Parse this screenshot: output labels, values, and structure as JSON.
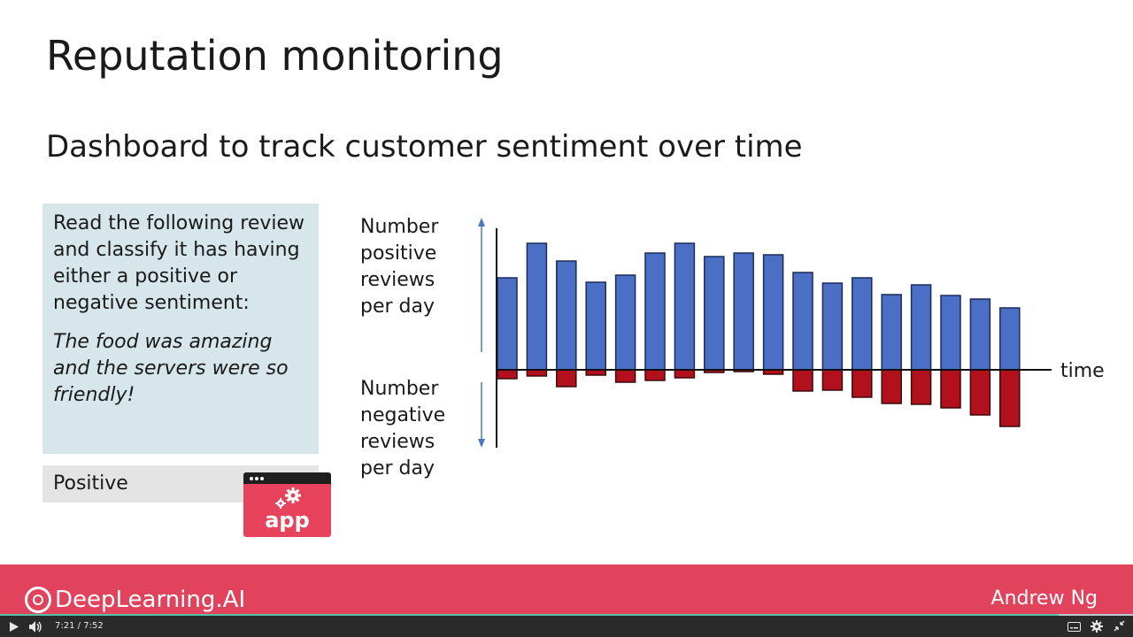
{
  "slide": {
    "title": "Reputation monitoring",
    "subtitle": "Dashboard to track customer sentiment over time",
    "prompt_text": "Read the following review and classify it has having either a positive or negative sentiment:",
    "review_text": "The food was amazing and the servers were so friendly!",
    "result_text": "Positive",
    "app_icon_label": "app",
    "ylabel_positive": [
      "Number",
      "positive",
      "reviews",
      "per day"
    ],
    "ylabel_negative": [
      "Number",
      "negative",
      "reviews",
      "per day"
    ],
    "xlabel": "time"
  },
  "chart_data": {
    "type": "bar",
    "title": "",
    "xlabel": "time",
    "ylabel": "Number positive reviews per day / Number negative reviews per day",
    "x": [
      1,
      2,
      3,
      4,
      5,
      6,
      7,
      8,
      9,
      10,
      11,
      12,
      13,
      14,
      15,
      16,
      17,
      18
    ],
    "series": [
      {
        "values": [
          104,
          143,
          123,
          99,
          107,
          132,
          143,
          128,
          132,
          130,
          110,
          98,
          104,
          85,
          96,
          84,
          80,
          70
        ]
      },
      {
        "values": [
          -10,
          -7,
          -19,
          -6,
          -14,
          -12,
          -9,
          -3,
          -2,
          -5,
          -24,
          -23,
          -31,
          -38,
          -39,
          -43,
          -51,
          -64
        ]
      }
    ],
    "colors": {
      "positive": "#4a6fc4",
      "negative": "#b3101e"
    },
    "ylim": [
      -90,
      160
    ],
    "grid": false,
    "legend": "none"
  },
  "footer": {
    "brand": "DeepLearning.AI",
    "presenter": "Andrew Ng"
  },
  "player": {
    "current_time": "7:21",
    "separator": "/",
    "duration": "7:52",
    "progress": 0.934
  }
}
